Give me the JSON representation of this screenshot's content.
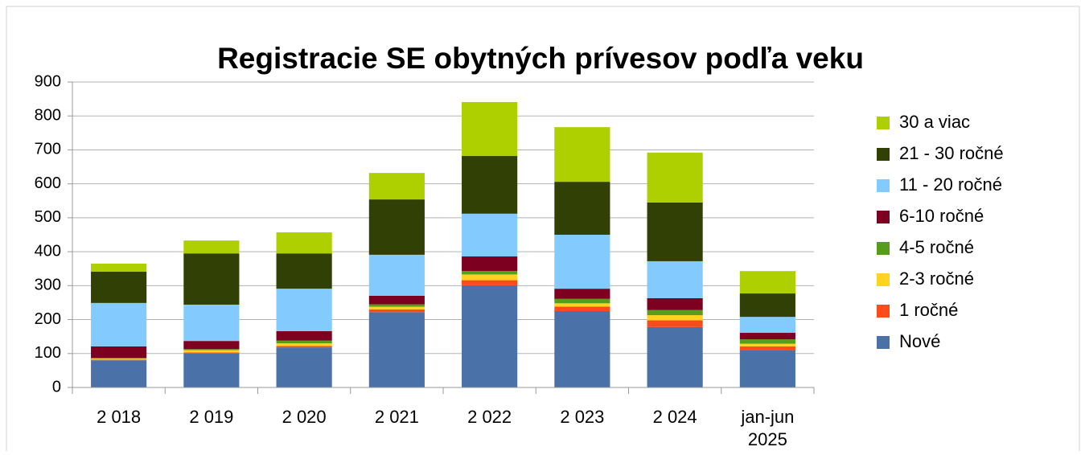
{
  "chart_data": {
    "type": "stacked_bar",
    "title": "Registracie SE obytných prívesov podľa veku",
    "categories": [
      "2 018",
      "2 019",
      "2 020",
      "2 021",
      "2 022",
      "2 023",
      "2 024",
      "jan-jun 2025"
    ],
    "series": [
      {
        "name": "Nové",
        "color": "#4a72a8",
        "values": [
          80,
          100,
          118,
          222,
          301,
          225,
          178,
          109
        ]
      },
      {
        "name": "1 ročné",
        "color": "#ff4a1a",
        "values": [
          2,
          3,
          4,
          8,
          15,
          13,
          20,
          12
        ]
      },
      {
        "name": "2-3 ročné",
        "color": "#ffd320",
        "values": [
          3,
          7,
          8,
          8,
          17,
          10,
          15,
          8
        ]
      },
      {
        "name": "4-5 ročné",
        "color": "#579d1c",
        "values": [
          2,
          3,
          8,
          7,
          10,
          13,
          15,
          13
        ]
      },
      {
        "name": "6-10 ročné",
        "color": "#7e0021",
        "values": [
          34,
          24,
          28,
          25,
          43,
          30,
          35,
          19
        ]
      },
      {
        "name": "11 - 20 ročné",
        "color": "#83caff",
        "values": [
          128,
          107,
          125,
          121,
          126,
          159,
          109,
          47
        ]
      },
      {
        "name": "21 - 30 ročné",
        "color": "#314004",
        "values": [
          92,
          151,
          104,
          163,
          170,
          156,
          173,
          69
        ]
      },
      {
        "name": "30 a viac",
        "color": "#aecf00",
        "values": [
          24,
          38,
          62,
          78,
          159,
          161,
          147,
          66
        ]
      }
    ],
    "ylim": [
      0,
      900
    ],
    "yticks": [
      0,
      100,
      200,
      300,
      400,
      500,
      600,
      700,
      800,
      900
    ],
    "grid": true,
    "legend": "right"
  }
}
